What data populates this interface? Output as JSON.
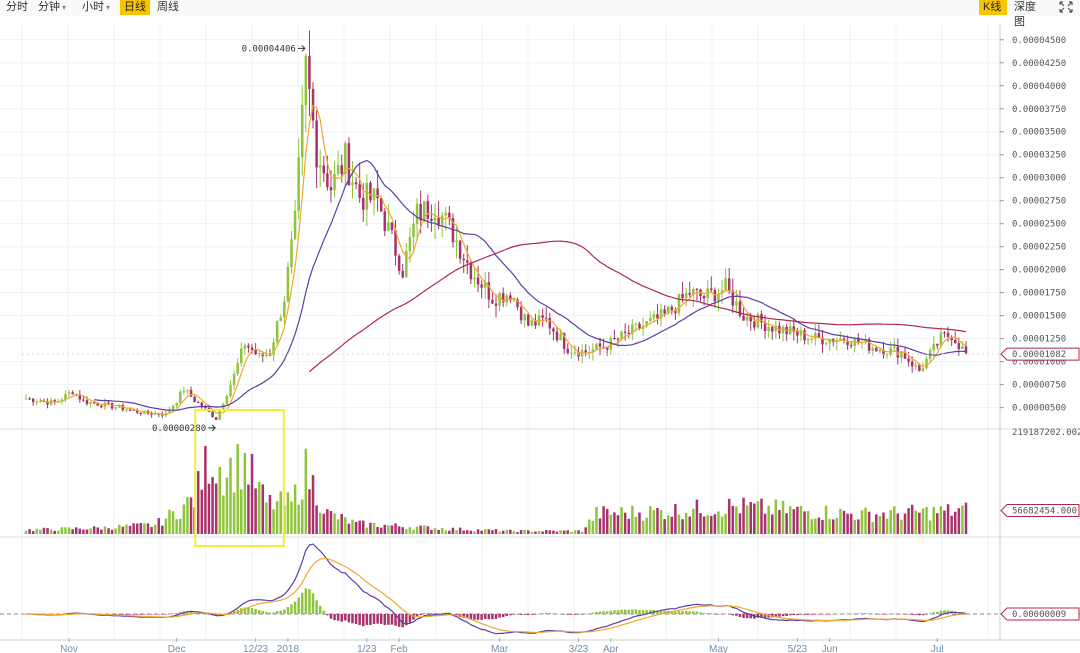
{
  "toolbar": {
    "intervals": [
      {
        "label": "分时",
        "dropdown": false,
        "active": false
      },
      {
        "label": "分钟",
        "dropdown": true,
        "active": false
      },
      {
        "label": "小时",
        "dropdown": true,
        "active": false
      },
      {
        "label": "日线",
        "dropdown": false,
        "active": true
      },
      {
        "label": "周线",
        "dropdown": false,
        "active": false
      }
    ],
    "views": [
      {
        "label": "K线",
        "active": true
      },
      {
        "label": "深度图",
        "active": false
      }
    ],
    "fullscreen_icon": "expand-arrows-icon"
  },
  "colors": {
    "up": "#8fc53c",
    "down": "#a8326b",
    "ma_short": "#f0a830",
    "ma_mid": "#5b3fa6",
    "ma_long": "#b0284a",
    "highlight_box": "#f2ef3a",
    "active_tab": "#f7c600"
  },
  "chart_data": {
    "type": "candlestick",
    "price_axis_ticks": [
      "0.00004500",
      "0.00004250",
      "0.00004000",
      "0.00003750",
      "0.00003500",
      "0.00003250",
      "0.00003000",
      "0.00002750",
      "0.00002500",
      "0.00002250",
      "0.00002000",
      "0.00001750",
      "0.00001500",
      "0.00001250",
      "0.00001000",
      "0.00000750",
      "0.00000500"
    ],
    "price_ylim": [
      3e-06,
      4.65e-05
    ],
    "current_price_label": "0.00001082",
    "current_price": 1.082e-05,
    "max_annotation": {
      "label": "0.00004406",
      "price": 4.406e-05,
      "date": "2018-01-06"
    },
    "min_annotation": {
      "label": "0.00000280",
      "price": 2.8e-06,
      "date": "2017-12-12"
    },
    "volume_axis_top": "219187202.002",
    "volume_current_label": "56682454.000",
    "volume_max": 219187202,
    "macd_current_label": "0.00000009",
    "date_labels": [
      "Nov",
      "Dec",
      "12/23",
      "2018",
      "1/23",
      "Feb",
      "Mar",
      "3/23",
      "Apr",
      "May",
      "5/23",
      "Jun",
      "Jul"
    ],
    "price_anchors": [
      [
        "2017-10-20",
        6e-06
      ],
      [
        "2017-10-28",
        5.5e-06
      ],
      [
        "2017-11-02",
        6.8e-06
      ],
      [
        "2017-11-05",
        5.7e-06
      ],
      [
        "2017-11-15",
        5e-06
      ],
      [
        "2017-11-22",
        4.4e-06
      ],
      [
        "2017-11-28",
        4.3e-06
      ],
      [
        "2017-12-01",
        5.8e-06
      ],
      [
        "2017-12-03",
        7e-06
      ],
      [
        "2017-12-06",
        5.8e-06
      ],
      [
        "2017-12-12",
        3.8e-06
      ],
      [
        "2017-12-17",
        8.5e-06
      ],
      [
        "2017-12-20",
        1.2e-05
      ],
      [
        "2017-12-24",
        1.05e-05
      ],
      [
        "2017-12-27",
        1.1e-05
      ],
      [
        "2017-12-31",
        1.7e-05
      ],
      [
        "2018-01-03",
        2.5e-05
      ],
      [
        "2018-01-06",
        4.2e-05
      ],
      [
        "2018-01-09",
        3.3e-05
      ],
      [
        "2018-01-13",
        2.9e-05
      ],
      [
        "2018-01-17",
        3.2e-05
      ],
      [
        "2018-01-21",
        2.8e-05
      ],
      [
        "2018-01-26",
        2.75e-05
      ],
      [
        "2018-02-02",
        2e-05
      ],
      [
        "2018-02-06",
        2.6e-05
      ],
      [
        "2018-02-11",
        2.7e-05
      ],
      [
        "2018-02-16",
        2.4e-05
      ],
      [
        "2018-02-21",
        2e-05
      ],
      [
        "2018-02-27",
        1.7e-05
      ],
      [
        "2018-03-04",
        1.75e-05
      ],
      [
        "2018-03-09",
        1.4e-05
      ],
      [
        "2018-03-14",
        1.45e-05
      ],
      [
        "2018-03-20",
        1.15e-05
      ],
      [
        "2018-03-25",
        1.1e-05
      ],
      [
        "2018-04-01",
        1.2e-05
      ],
      [
        "2018-04-08",
        1.35e-05
      ],
      [
        "2018-04-16",
        1.5e-05
      ],
      [
        "2018-04-23",
        1.75e-05
      ],
      [
        "2018-04-27",
        1.7e-05
      ],
      [
        "2018-05-03",
        1.8e-05
      ],
      [
        "2018-05-08",
        1.5e-05
      ],
      [
        "2018-05-18",
        1.35e-05
      ],
      [
        "2018-05-28",
        1.25e-05
      ],
      [
        "2018-06-06",
        1.25e-05
      ],
      [
        "2018-06-14",
        1.15e-05
      ],
      [
        "2018-06-21",
        1.1e-05
      ],
      [
        "2018-06-26",
        9e-06
      ],
      [
        "2018-07-02",
        1.25e-05
      ],
      [
        "2018-07-05",
        1.3e-05
      ],
      [
        "2018-07-09",
        1.08e-05
      ]
    ],
    "volume_anchors": [
      [
        "2017-10-20",
        0.04
      ],
      [
        "2017-11-10",
        0.06
      ],
      [
        "2017-11-25",
        0.09
      ],
      [
        "2017-12-01",
        0.22
      ],
      [
        "2017-12-06",
        0.35
      ],
      [
        "2017-12-10",
        0.75
      ],
      [
        "2017-12-14",
        0.62
      ],
      [
        "2017-12-20",
        0.7
      ],
      [
        "2017-12-26",
        0.3
      ],
      [
        "2018-01-02",
        0.3
      ],
      [
        "2018-01-06",
        0.62
      ],
      [
        "2018-01-12",
        0.2
      ],
      [
        "2018-01-20",
        0.1
      ],
      [
        "2018-02-15",
        0.05
      ],
      [
        "2018-03-04",
        0.03
      ],
      [
        "2018-03-24",
        0.03
      ],
      [
        "2018-03-28",
        0.2
      ],
      [
        "2018-04-15",
        0.22
      ],
      [
        "2018-05-05",
        0.27
      ],
      [
        "2018-06-10",
        0.19
      ],
      [
        "2018-07-09",
        0.23
      ]
    ],
    "highlight_range": {
      "start": "2017-12-07",
      "end": "2017-12-30"
    }
  }
}
